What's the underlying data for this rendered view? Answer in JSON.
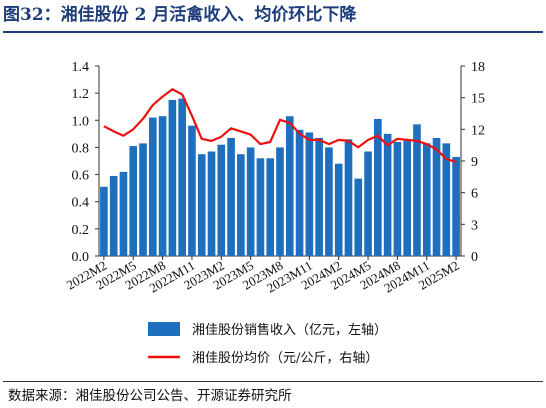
{
  "figure": {
    "title": "图32：湘佳股份 2 月活禽收入、均价环比下降",
    "source": "数据来源：湘佳股份公司公告、开源证券研究所"
  },
  "chart_data": {
    "type": "bar",
    "title": "",
    "xlabel": "",
    "ylabel": "",
    "x": [
      "2022M2",
      "2022M3",
      "2022M4",
      "2022M5",
      "2022M6",
      "2022M7",
      "2022M8",
      "2022M9",
      "2022M10",
      "2022M11",
      "2022M12",
      "2023M1",
      "2023M2",
      "2023M3",
      "2023M4",
      "2023M5",
      "2023M6",
      "2023M7",
      "2023M8",
      "2023M9",
      "2023M10",
      "2023M11",
      "2023M12",
      "2024M1",
      "2024M2",
      "2024M3",
      "2024M4",
      "2024M5",
      "2024M6",
      "2024M7",
      "2024M8",
      "2024M9",
      "2024M10",
      "2024M11",
      "2024M12",
      "2025M1",
      "2025M2"
    ],
    "x_tick_labels": [
      "2022M2",
      "2022M5",
      "2022M8",
      "2022M11",
      "2023M2",
      "2023M5",
      "2023M8",
      "2023M11",
      "2024M2",
      "2024M5",
      "2024M8",
      "2024M11",
      "2025M2"
    ],
    "series": [
      {
        "name": "湘佳股份销售收入（亿元，左轴）",
        "type": "bar",
        "axis": "left",
        "color": "#1f6fbf",
        "values": [
          0.51,
          0.59,
          0.62,
          0.81,
          0.83,
          1.02,
          1.03,
          1.15,
          1.16,
          0.96,
          0.75,
          0.77,
          0.82,
          0.87,
          0.75,
          0.8,
          0.72,
          0.72,
          0.8,
          1.03,
          0.93,
          0.91,
          0.87,
          0.8,
          0.68,
          0.86,
          0.57,
          0.77,
          1.01,
          0.9,
          0.84,
          0.85,
          0.97,
          0.83,
          0.87,
          0.83,
          0.73
        ]
      },
      {
        "name": "湘佳股份均价（元/公斤，右轴）",
        "type": "line",
        "axis": "right",
        "color": "#ee1111",
        "values": [
          12.3,
          11.8,
          11.4,
          12.0,
          13.0,
          14.3,
          15.1,
          15.8,
          15.3,
          13.3,
          11.1,
          10.9,
          11.3,
          12.1,
          11.8,
          11.5,
          10.6,
          10.8,
          12.9,
          12.6,
          11.6,
          11.0,
          11.0,
          10.6,
          11.0,
          10.9,
          10.3,
          11.0,
          11.4,
          10.5,
          11.1,
          11.0,
          10.9,
          10.6,
          10.1,
          9.2,
          8.9
        ]
      }
    ],
    "ylim": [
      0,
      1.4
    ],
    "yticks": [
      "0.0",
      "0.2",
      "0.4",
      "0.6",
      "0.8",
      "1.0",
      "1.2",
      "1.4"
    ],
    "y2lim": [
      0,
      18
    ],
    "y2ticks": [
      "0",
      "3",
      "6",
      "9",
      "12",
      "15",
      "18"
    ],
    "grid": false,
    "legend_position": "bottom"
  }
}
